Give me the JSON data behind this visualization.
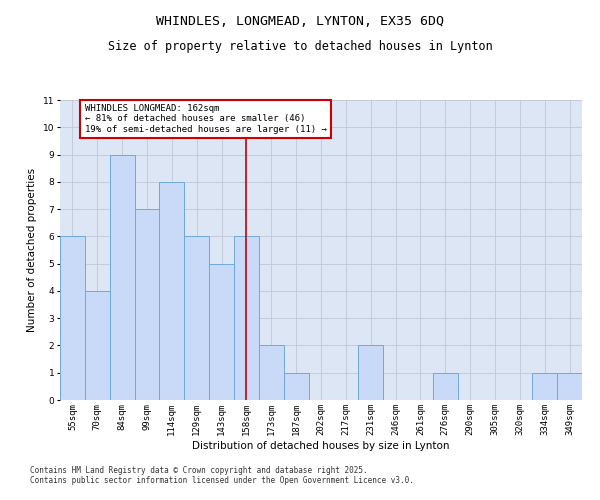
{
  "title": "WHINDLES, LONGMEAD, LYNTON, EX35 6DQ",
  "subtitle": "Size of property relative to detached houses in Lynton",
  "xlabel": "Distribution of detached houses by size in Lynton",
  "ylabel": "Number of detached properties",
  "categories": [
    "55sqm",
    "70sqm",
    "84sqm",
    "99sqm",
    "114sqm",
    "129sqm",
    "143sqm",
    "158sqm",
    "173sqm",
    "187sqm",
    "202sqm",
    "217sqm",
    "231sqm",
    "246sqm",
    "261sqm",
    "276sqm",
    "290sqm",
    "305sqm",
    "320sqm",
    "334sqm",
    "349sqm"
  ],
  "values": [
    6,
    4,
    9,
    7,
    8,
    6,
    5,
    6,
    2,
    1,
    0,
    0,
    2,
    0,
    0,
    1,
    0,
    0,
    0,
    1,
    1
  ],
  "bar_color": "#c9daf8",
  "bar_edge_color": "#6fa8dc",
  "grid_color": "#c0c8d8",
  "background_color": "#dce6f5",
  "annotation_box_color": "#cc0000",
  "vline_index": 7,
  "ylim": [
    0,
    11
  ],
  "yticks": [
    0,
    1,
    2,
    3,
    4,
    5,
    6,
    7,
    8,
    9,
    10,
    11
  ],
  "footnote": "Contains HM Land Registry data © Crown copyright and database right 2025.\nContains public sector information licensed under the Open Government Licence v3.0.",
  "title_fontsize": 9.5,
  "subtitle_fontsize": 8.5,
  "label_fontsize": 7.5,
  "tick_fontsize": 6.5,
  "annot_fontsize": 6.5,
  "footnote_fontsize": 5.5,
  "annot_line1": "WHINDLES LONGMEAD: 162sqm",
  "annot_line2": "← 81% of detached houses are smaller (46)",
  "annot_line3": "19% of semi-detached houses are larger (11) →"
}
